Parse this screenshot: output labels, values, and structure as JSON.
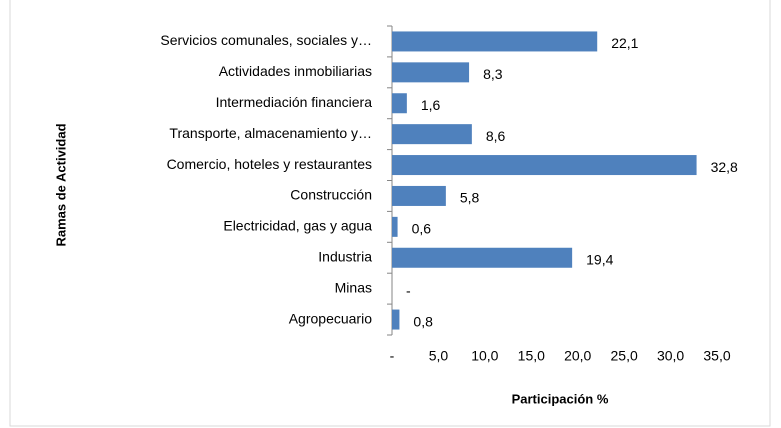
{
  "chart_data": {
    "type": "bar",
    "orientation": "horizontal",
    "x_label": "Participación %",
    "y_label": "Ramas de Actividad",
    "categories": [
      "Servicios comunales, sociales y…",
      "Actividades inmobiliarias",
      "Intermediación financiera",
      "Transporte, almacenamiento y…",
      "Comercio, hoteles y restaurantes",
      "Construcción",
      "Electricidad, gas y agua",
      "Industria",
      "Minas",
      "Agropecuario"
    ],
    "values": [
      22.1,
      8.3,
      1.6,
      8.6,
      32.8,
      5.8,
      0.6,
      19.4,
      0,
      0.8
    ],
    "value_labels": [
      "22,1",
      "8,3",
      "1,6",
      "8,6",
      "32,8",
      "5,8",
      "0,6",
      "19,4",
      "-",
      "0,8"
    ],
    "color": "#4f81bd",
    "xlim": [
      0,
      35
    ],
    "xticks": [
      {
        "value": 0,
        "label": "-"
      },
      {
        "value": 5,
        "label": "5,0"
      },
      {
        "value": 10,
        "label": "10,0"
      },
      {
        "value": 15,
        "label": "15,0"
      },
      {
        "value": 20,
        "label": "20,0"
      },
      {
        "value": 25,
        "label": "25,0"
      },
      {
        "value": 30,
        "label": "30,0"
      },
      {
        "value": 35,
        "label": "35,0"
      }
    ],
    "grid": false
  }
}
